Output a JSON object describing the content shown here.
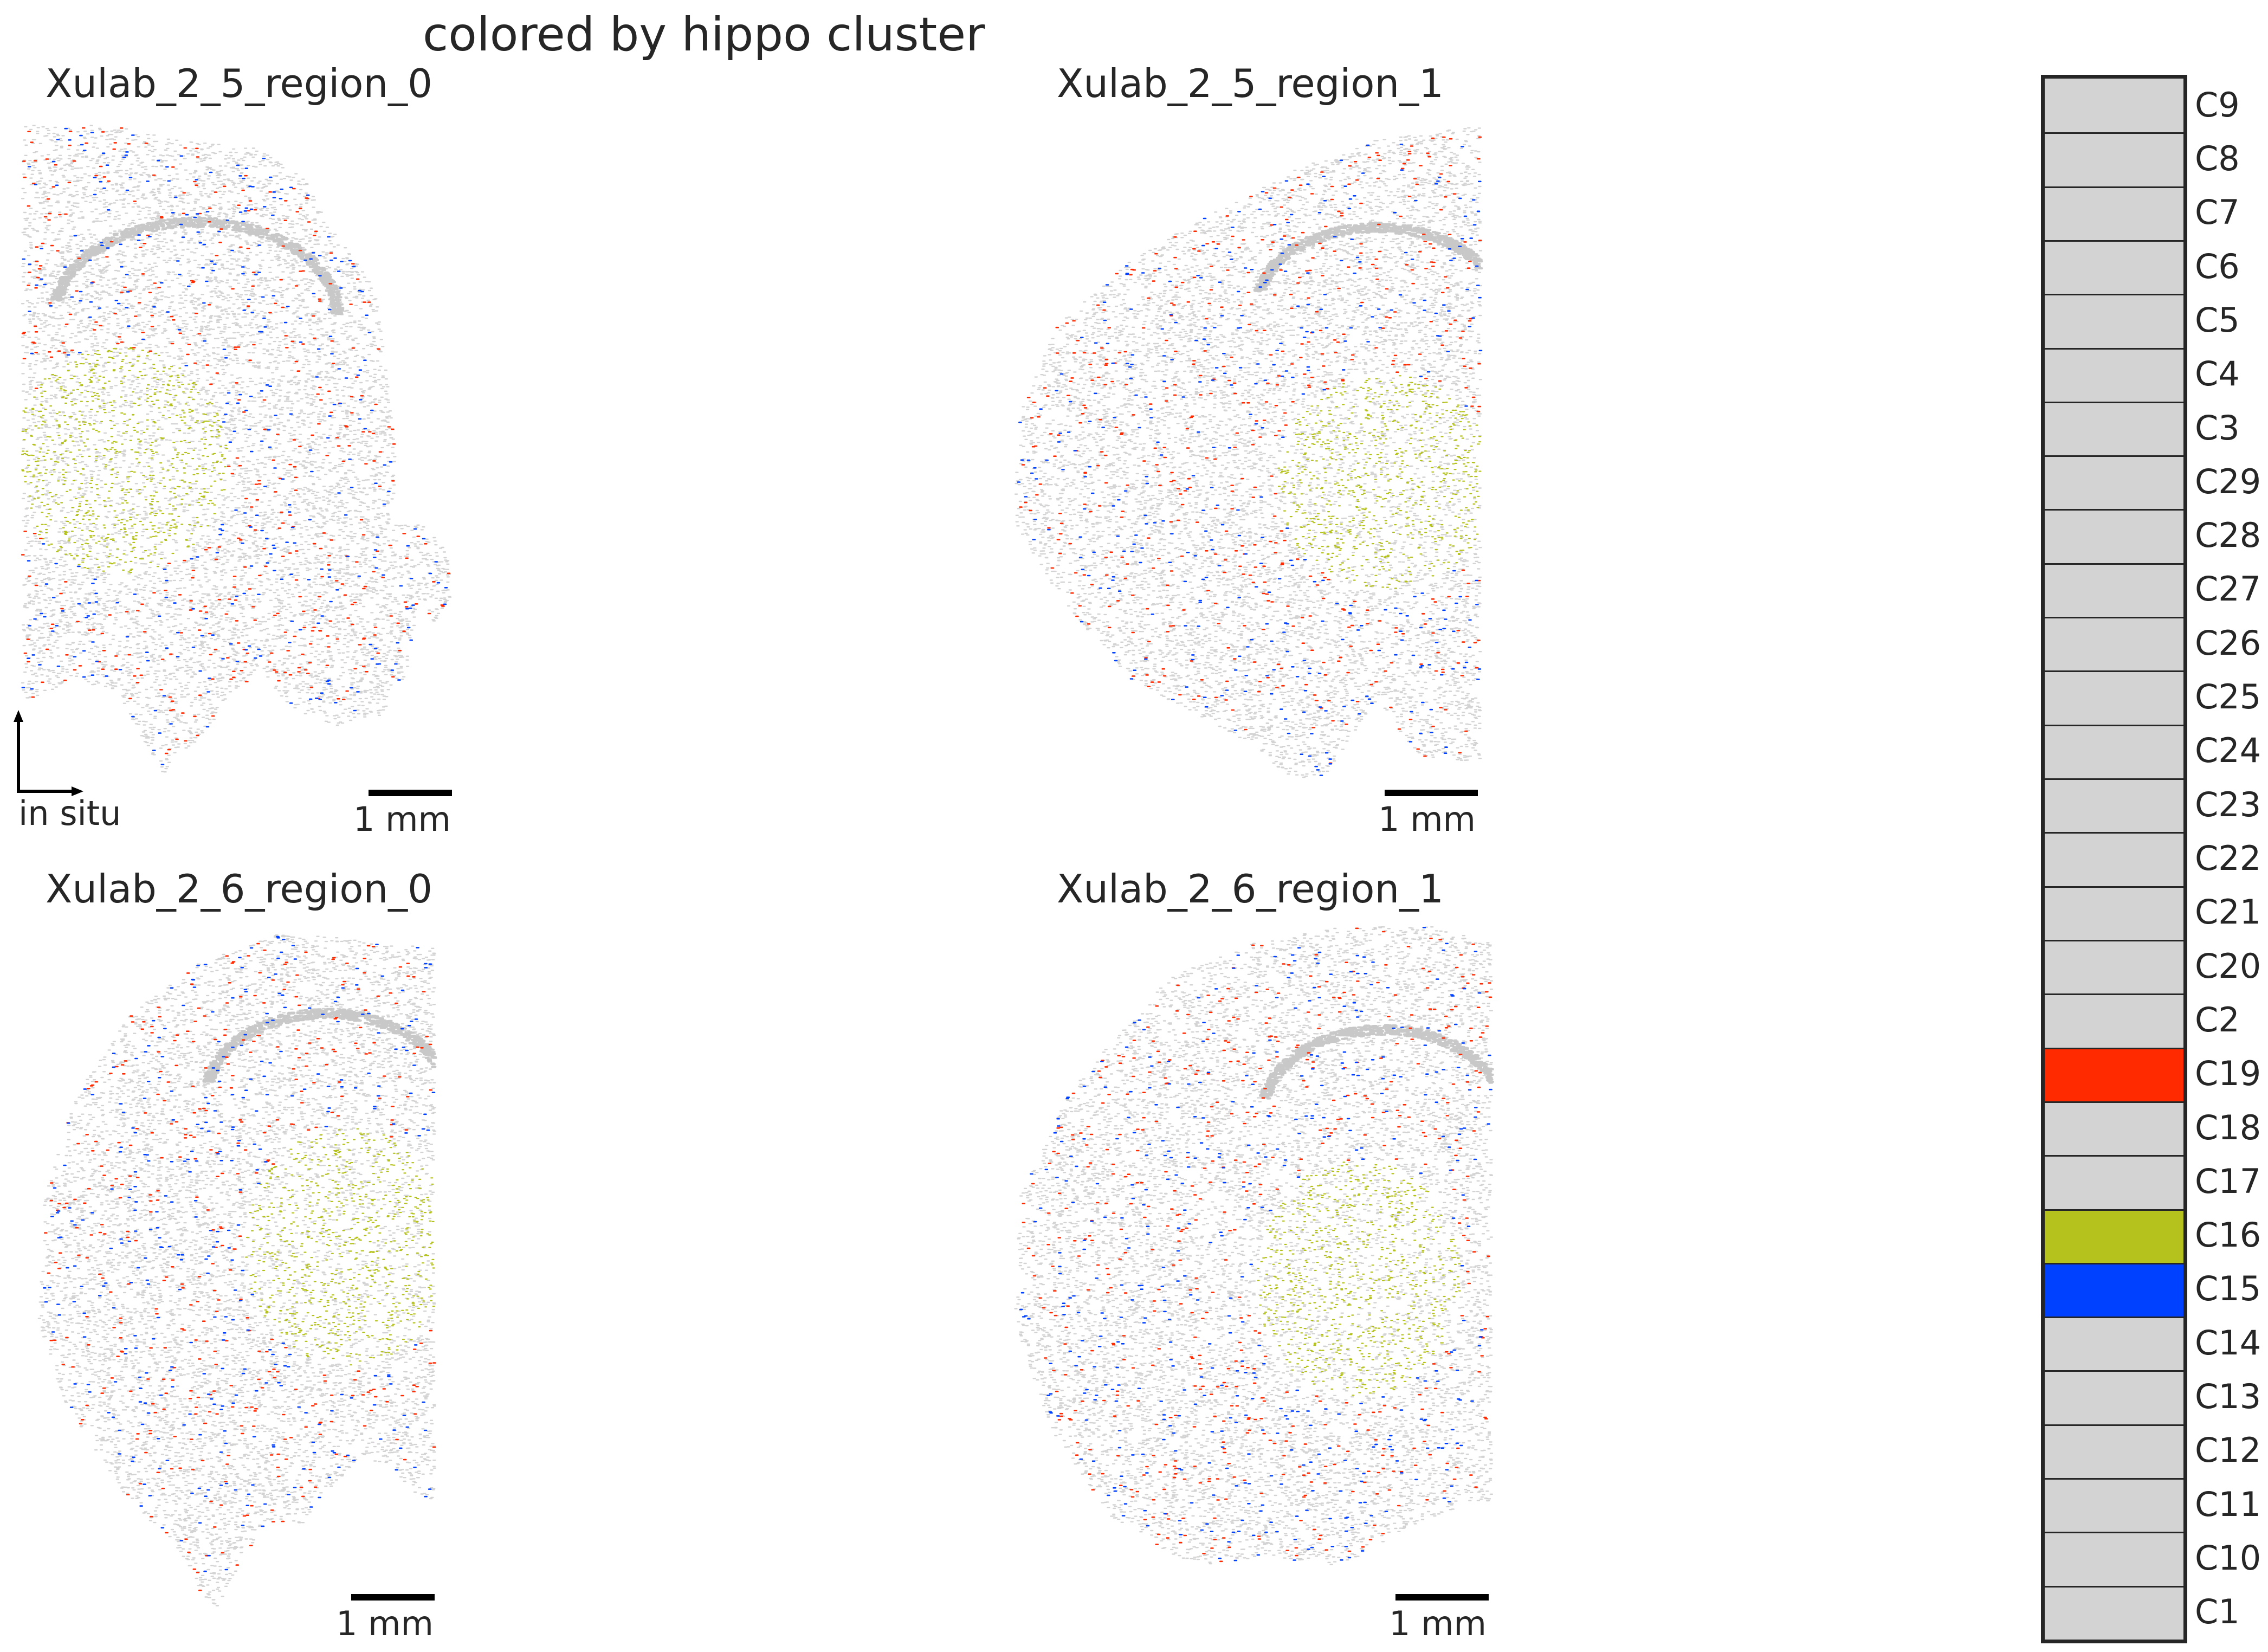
{
  "chart_data": {
    "type": "scatter",
    "title": "colored by hippo cluster",
    "axes_indicator_label": "in situ",
    "panels": [
      {
        "title": "Xulab_2_5_region_0",
        "scalebar_label": "1 mm"
      },
      {
        "title": "Xulab_2_5_region_1",
        "scalebar_label": "1 mm"
      },
      {
        "title": "Xulab_2_6_region_0",
        "scalebar_label": "1 mm"
      },
      {
        "title": "Xulab_2_6_region_1",
        "scalebar_label": "1 mm"
      }
    ],
    "legend": {
      "placement": "right",
      "entries": [
        {
          "label": "C9",
          "color": "#d3d3d3"
        },
        {
          "label": "C8",
          "color": "#d3d3d3"
        },
        {
          "label": "C7",
          "color": "#d3d3d3"
        },
        {
          "label": "C6",
          "color": "#d3d3d3"
        },
        {
          "label": "C5",
          "color": "#d3d3d3"
        },
        {
          "label": "C4",
          "color": "#d3d3d3"
        },
        {
          "label": "C3",
          "color": "#d3d3d3"
        },
        {
          "label": "C29",
          "color": "#d3d3d3"
        },
        {
          "label": "C28",
          "color": "#d3d3d3"
        },
        {
          "label": "C27",
          "color": "#d3d3d3"
        },
        {
          "label": "C26",
          "color": "#d3d3d3"
        },
        {
          "label": "C25",
          "color": "#d3d3d3"
        },
        {
          "label": "C24",
          "color": "#d3d3d3"
        },
        {
          "label": "C23",
          "color": "#d3d3d3"
        },
        {
          "label": "C22",
          "color": "#d3d3d3"
        },
        {
          "label": "C21",
          "color": "#d3d3d3"
        },
        {
          "label": "C20",
          "color": "#d3d3d3"
        },
        {
          "label": "C2",
          "color": "#d3d3d3"
        },
        {
          "label": "C19",
          "color": "#ff2a00"
        },
        {
          "label": "C18",
          "color": "#d3d3d3"
        },
        {
          "label": "C17",
          "color": "#d3d3d3"
        },
        {
          "label": "C16",
          "color": "#b5c11c"
        },
        {
          "label": "C15",
          "color": "#0040ff"
        },
        {
          "label": "C14",
          "color": "#d3d3d3"
        },
        {
          "label": "C13",
          "color": "#d3d3d3"
        },
        {
          "label": "C12",
          "color": "#d3d3d3"
        },
        {
          "label": "C11",
          "color": "#d3d3d3"
        },
        {
          "label": "C10",
          "color": "#d3d3d3"
        },
        {
          "label": "C1",
          "color": "#d3d3d3"
        }
      ]
    },
    "background_color": "#d3d3d3"
  }
}
